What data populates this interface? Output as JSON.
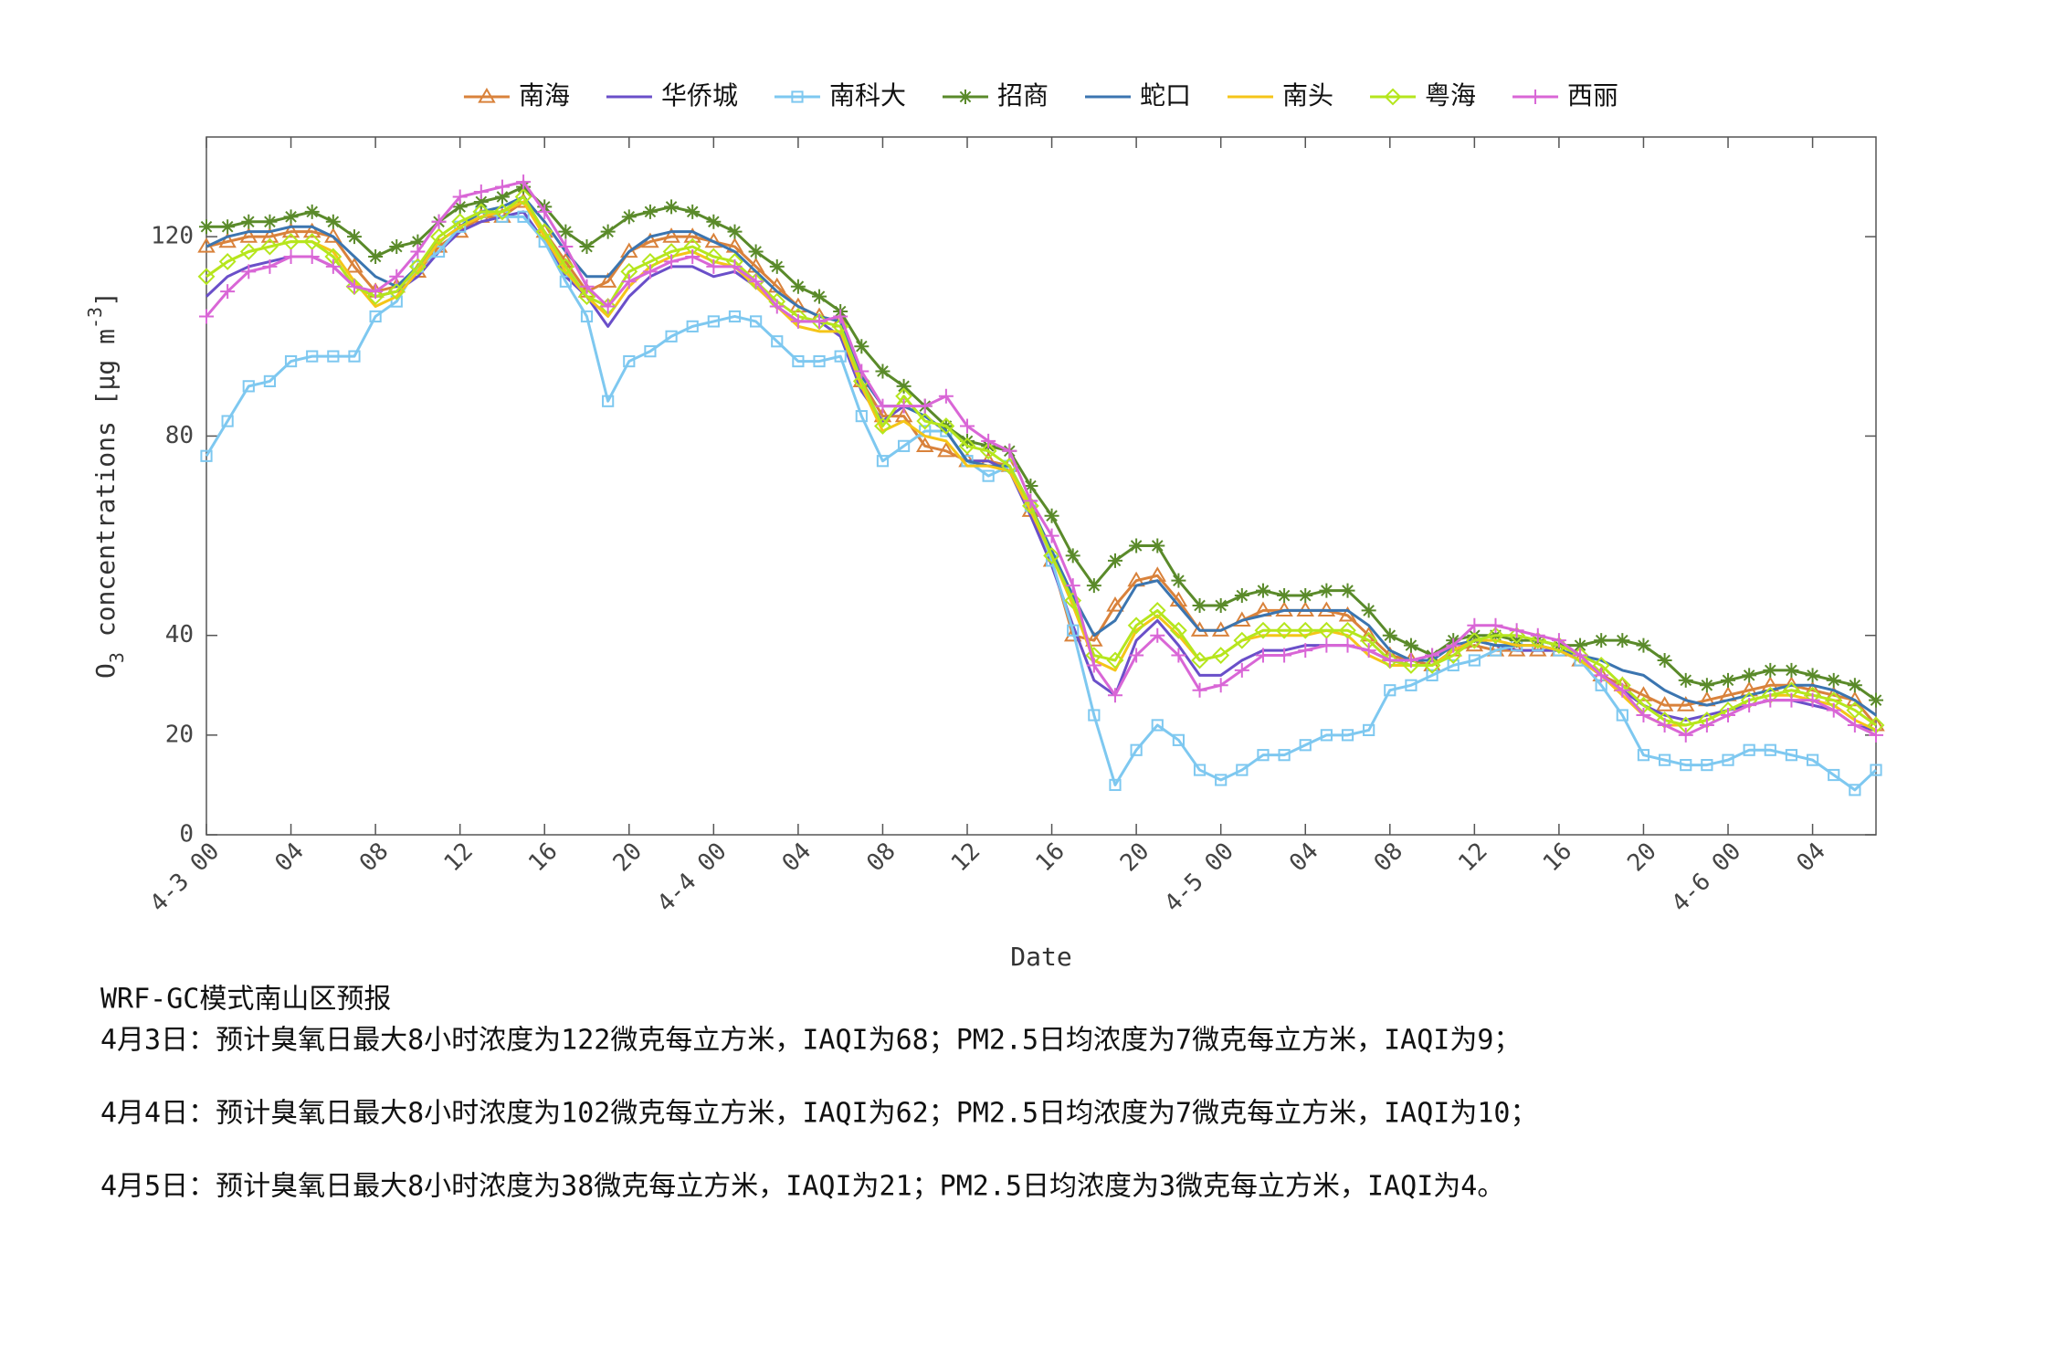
{
  "chart_data": {
    "type": "line",
    "xlabel": "Date",
    "ylabel": [
      "O",
      "3",
      " concentrations [μg m",
      "-3",
      "]"
    ],
    "x": [
      0,
      1,
      2,
      3,
      4,
      5,
      6,
      7,
      8,
      9,
      10,
      11,
      12,
      13,
      14,
      15,
      16,
      17,
      18,
      19,
      20,
      21,
      22,
      23,
      24,
      25,
      26,
      27,
      28,
      29,
      30,
      31,
      32,
      33,
      34,
      35,
      36,
      37,
      38,
      39,
      40,
      41,
      42,
      43,
      44,
      45,
      46,
      47,
      48,
      49,
      50,
      51,
      52,
      53,
      54,
      55,
      56,
      57,
      58,
      59,
      60,
      61,
      62,
      63,
      64,
      65,
      66,
      67,
      68,
      69,
      70,
      71,
      72,
      73,
      74,
      75,
      76,
      77,
      78,
      79
    ],
    "xlim": [
      0,
      79
    ],
    "xticks": [
      {
        "value": 0,
        "label": "4-3 00"
      },
      {
        "value": 4,
        "label": "04"
      },
      {
        "value": 8,
        "label": "08"
      },
      {
        "value": 12,
        "label": "12"
      },
      {
        "value": 16,
        "label": "16"
      },
      {
        "value": 20,
        "label": "20"
      },
      {
        "value": 24,
        "label": "4-4 00"
      },
      {
        "value": 28,
        "label": "04"
      },
      {
        "value": 32,
        "label": "08"
      },
      {
        "value": 36,
        "label": "12"
      },
      {
        "value": 40,
        "label": "16"
      },
      {
        "value": 44,
        "label": "20"
      },
      {
        "value": 48,
        "label": "4-5 00"
      },
      {
        "value": 52,
        "label": "04"
      },
      {
        "value": 56,
        "label": "08"
      },
      {
        "value": 60,
        "label": "12"
      },
      {
        "value": 64,
        "label": "16"
      },
      {
        "value": 68,
        "label": "20"
      },
      {
        "value": 72,
        "label": "4-6 00"
      },
      {
        "value": 76,
        "label": "04"
      }
    ],
    "ylim": [
      0,
      140
    ],
    "yticks": [
      0,
      20,
      40,
      80,
      120
    ],
    "grid": false,
    "legend": "top",
    "series": [
      {
        "name": "南海",
        "color": "#d9823b",
        "marker": "triangle",
        "values": [
          118,
          119,
          120,
          120,
          121,
          121,
          120,
          114,
          109,
          110,
          113,
          118,
          121,
          124,
          124,
          127,
          121,
          115,
          109,
          111,
          117,
          119,
          120,
          120,
          119,
          118,
          114,
          110,
          106,
          104,
          103,
          91,
          84,
          84,
          78,
          77,
          75,
          75,
          74,
          65,
          55,
          40,
          39,
          46,
          51,
          52,
          47,
          41,
          41,
          43,
          45,
          45,
          45,
          45,
          44,
          40,
          36,
          35,
          34,
          37,
          38,
          37,
          37,
          37,
          37,
          35,
          32,
          30,
          28,
          26,
          26,
          27,
          28,
          29,
          30,
          30,
          29,
          28,
          27,
          22
        ]
      },
      {
        "name": "华侨城",
        "color": "#6a4fc9",
        "marker": "none",
        "values": [
          108,
          112,
          114,
          115,
          116,
          116,
          114,
          110,
          108,
          109,
          112,
          117,
          121,
          123,
          124,
          125,
          119,
          112,
          108,
          102,
          108,
          112,
          114,
          114,
          112,
          113,
          110,
          106,
          103,
          103,
          100,
          89,
          83,
          86,
          84,
          81,
          75,
          75,
          73,
          64,
          54,
          42,
          31,
          28,
          39,
          43,
          38,
          32,
          32,
          35,
          37,
          37,
          38,
          38,
          38,
          37,
          35,
          34,
          34,
          37,
          39,
          38,
          37,
          37,
          37,
          35,
          32,
          29,
          26,
          24,
          23,
          24,
          25,
          26,
          27,
          27,
          26,
          25,
          22,
          21
        ]
      },
      {
        "name": "南科大",
        "color": "#7ec8f0",
        "marker": "square",
        "values": [
          76,
          83,
          90,
          91,
          95,
          96,
          96,
          96,
          104,
          107,
          114,
          117,
          122,
          125,
          124,
          124,
          119,
          111,
          104,
          87,
          95,
          97,
          100,
          102,
          103,
          104,
          103,
          99,
          95,
          95,
          96,
          84,
          75,
          78,
          81,
          81,
          75,
          72,
          74,
          66,
          55,
          41,
          24,
          10,
          17,
          22,
          19,
          13,
          11,
          13,
          16,
          16,
          18,
          20,
          20,
          21,
          29,
          30,
          32,
          34,
          35,
          37,
          38,
          38,
          37,
          35,
          30,
          24,
          16,
          15,
          14,
          14,
          15,
          17,
          17,
          16,
          15,
          12,
          9,
          13
        ]
      },
      {
        "name": "招商",
        "color": "#5a8a2a",
        "marker": "star",
        "values": [
          122,
          122,
          123,
          123,
          124,
          125,
          123,
          120,
          116,
          118,
          119,
          123,
          126,
          127,
          128,
          130,
          126,
          121,
          118,
          121,
          124,
          125,
          126,
          125,
          123,
          121,
          117,
          114,
          110,
          108,
          105,
          98,
          93,
          90,
          86,
          82,
          79,
          78,
          77,
          70,
          64,
          56,
          50,
          55,
          58,
          58,
          51,
          46,
          46,
          48,
          49,
          48,
          48,
          49,
          49,
          45,
          40,
          38,
          36,
          39,
          40,
          40,
          39,
          39,
          38,
          38,
          39,
          39,
          38,
          35,
          31,
          30,
          31,
          32,
          33,
          33,
          32,
          31,
          30,
          27
        ]
      },
      {
        "name": "蛇口",
        "color": "#3b75b0",
        "marker": "none",
        "values": [
          118,
          120,
          121,
          121,
          122,
          122,
          120,
          116,
          112,
          110,
          114,
          119,
          122,
          125,
          126,
          128,
          123,
          117,
          112,
          112,
          117,
          120,
          121,
          121,
          119,
          117,
          113,
          109,
          106,
          104,
          103,
          92,
          86,
          86,
          84,
          81,
          75,
          74,
          74,
          66,
          57,
          48,
          40,
          43,
          50,
          51,
          46,
          41,
          41,
          43,
          44,
          45,
          45,
          45,
          45,
          42,
          37,
          35,
          35,
          38,
          39,
          38,
          38,
          38,
          37,
          36,
          35,
          33,
          32,
          29,
          27,
          26,
          27,
          28,
          29,
          30,
          30,
          29,
          27,
          24
        ]
      },
      {
        "name": "南头",
        "color": "#f5c518",
        "marker": "none",
        "values": [
          112,
          115,
          117,
          118,
          119,
          119,
          117,
          111,
          106,
          108,
          113,
          119,
          122,
          124,
          125,
          127,
          120,
          113,
          108,
          104,
          110,
          114,
          116,
          117,
          115,
          114,
          110,
          106,
          102,
          101,
          101,
          90,
          81,
          83,
          80,
          79,
          74,
          74,
          73,
          65,
          56,
          46,
          35,
          33,
          41,
          44,
          40,
          35,
          36,
          39,
          40,
          40,
          40,
          41,
          40,
          36,
          34,
          34,
          34,
          37,
          39,
          39,
          38,
          38,
          37,
          35,
          32,
          28,
          24,
          22,
          22,
          23,
          25,
          27,
          28,
          28,
          27,
          26,
          23,
          21
        ]
      },
      {
        "name": "粤海",
        "color": "#b5e61d",
        "marker": "diamond",
        "values": [
          112,
          115,
          117,
          118,
          119,
          119,
          116,
          110,
          108,
          109,
          114,
          120,
          123,
          125,
          125,
          128,
          121,
          114,
          108,
          106,
          113,
          115,
          117,
          118,
          116,
          115,
          111,
          107,
          104,
          103,
          102,
          91,
          82,
          88,
          83,
          82,
          78,
          77,
          74,
          66,
          56,
          47,
          36,
          35,
          42,
          45,
          41,
          35,
          36,
          39,
          41,
          41,
          41,
          41,
          41,
          39,
          35,
          34,
          34,
          36,
          39,
          40,
          40,
          39,
          38,
          36,
          34,
          30,
          26,
          23,
          22,
          23,
          25,
          27,
          28,
          29,
          28,
          27,
          25,
          22
        ]
      },
      {
        "name": "西丽",
        "color": "#d966d6",
        "marker": "plus",
        "values": [
          104,
          109,
          113,
          114,
          116,
          116,
          114,
          110,
          109,
          112,
          117,
          123,
          128,
          129,
          130,
          131,
          125,
          118,
          110,
          106,
          111,
          113,
          115,
          116,
          114,
          114,
          111,
          106,
          103,
          103,
          104,
          93,
          86,
          86,
          86,
          88,
          82,
          79,
          77,
          67,
          60,
          50,
          34,
          28,
          36,
          40,
          36,
          29,
          30,
          33,
          36,
          36,
          37,
          38,
          38,
          37,
          35,
          35,
          36,
          38,
          42,
          42,
          41,
          40,
          39,
          36,
          32,
          29,
          24,
          22,
          20,
          22,
          24,
          26,
          27,
          27,
          27,
          25,
          22,
          20
        ]
      }
    ]
  },
  "forecast": {
    "title": "WRF-GC模式南山区预报",
    "lines": [
      "4月3日：预计臭氧日最大8小时浓度为122微克每立方米，IAQI为68；PM2.5日均浓度为7微克每立方米，IAQI为9；",
      "4月4日：预计臭氧日最大8小时浓度为102微克每立方米，IAQI为62；PM2.5日均浓度为7微克每立方米，IAQI为10；",
      "4月5日：预计臭氧日最大8小时浓度为38微克每立方米，IAQI为21；PM2.5日均浓度为3微克每立方米，IAQI为4。"
    ]
  }
}
